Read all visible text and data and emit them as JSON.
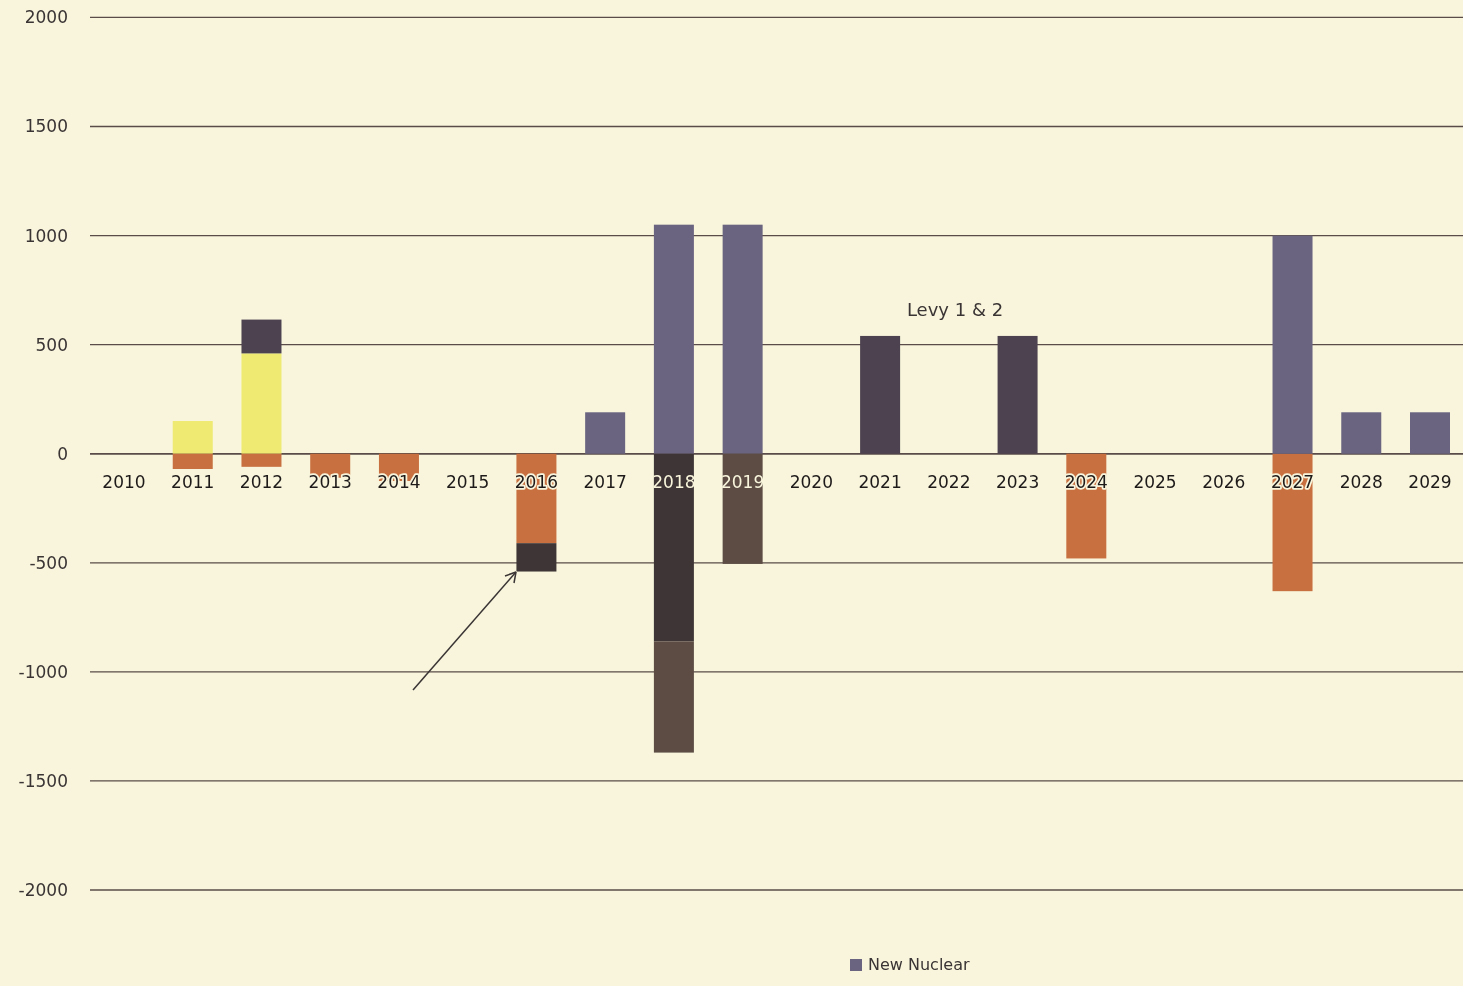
{
  "chart_data": {
    "type": "bar",
    "stacked": true,
    "categories": [
      "2010",
      "2011",
      "2012",
      "2013",
      "2014",
      "2015",
      "2016",
      "2017",
      "2018",
      "2019",
      "2020",
      "2021",
      "2022",
      "2023",
      "2024",
      "2025",
      "2026",
      "2027",
      "2028",
      "2029"
    ],
    "series": [
      {
        "color": "#eeea72",
        "values": [
          null,
          150,
          460,
          null,
          null,
          null,
          null,
          null,
          null,
          null,
          null,
          null,
          null,
          null,
          null,
          null,
          null,
          null,
          null,
          null
        ]
      },
      {
        "color": "#c8703f",
        "values": [
          null,
          -70,
          -60,
          -110,
          -125,
          null,
          -410,
          null,
          null,
          null,
          null,
          null,
          null,
          null,
          -480,
          null,
          null,
          -630,
          null,
          null
        ]
      },
      {
        "color": "#4c4250",
        "values": [
          null,
          null,
          155,
          null,
          null,
          null,
          null,
          null,
          null,
          null,
          null,
          540,
          null,
          540,
          null,
          null,
          null,
          null,
          null,
          null
        ]
      },
      {
        "name": "New Nuclear",
        "color": "#6a6480",
        "values": [
          null,
          null,
          null,
          null,
          null,
          null,
          null,
          190,
          1050,
          1050,
          null,
          null,
          null,
          null,
          null,
          null,
          null,
          1000,
          190,
          190
        ]
      },
      {
        "color": "#3e3636",
        "values": [
          null,
          null,
          null,
          null,
          null,
          null,
          -130,
          null,
          -860,
          null,
          null,
          null,
          null,
          null,
          null,
          null,
          null,
          null,
          null,
          null
        ]
      },
      {
        "color": "#5c4c44",
        "values": [
          null,
          null,
          null,
          null,
          null,
          null,
          null,
          null,
          -510,
          -505,
          null,
          null,
          null,
          null,
          null,
          null,
          null,
          null,
          null,
          null
        ]
      }
    ],
    "ylim": [
      -2440,
      2080
    ],
    "yticks": [
      -2000,
      -1500,
      -1000,
      -500,
      0,
      500,
      1000,
      1500,
      2000
    ],
    "grid": "y",
    "legend": "bottom",
    "annotations": [
      "Levy 1 & 2"
    ]
  }
}
